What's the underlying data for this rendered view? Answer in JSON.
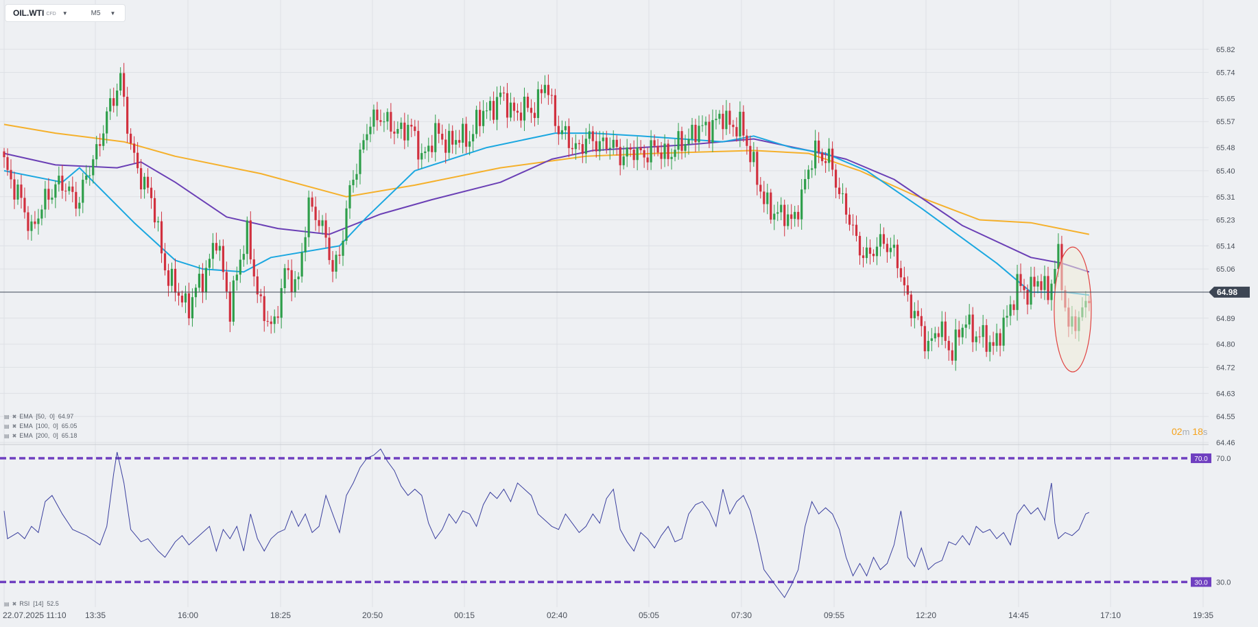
{
  "toolbar": {
    "symbol": "OIL.WTI",
    "symbol_type": "CFD",
    "timeframe": "M5"
  },
  "colors": {
    "bull": "#2e9e4a",
    "bear": "#d1303e",
    "ema50": "#1aa7e0",
    "ema100": "#6a3fb5",
    "ema200": "#f5b02a",
    "rsi_line": "#3a3f9e",
    "rsi_levels": "#6f3fc0",
    "price_tag": "#3d4654",
    "grid": "#dde0e5",
    "highlight_fill": "#f0ecd8",
    "highlight_stroke": "#e0413f"
  },
  "indicators": [
    {
      "label": "EMA  [50,  0]  64.97"
    },
    {
      "label": "EMA  [100,  0]  65.05"
    },
    {
      "label": "EMA  [200,  0]  65.18"
    }
  ],
  "rsi_legend": "RSI  [14]  52.5",
  "countdown": {
    "minutes": "02",
    "m": "m",
    "seconds": "18",
    "s": "s"
  },
  "chart_data": {
    "type": "candlestick",
    "symbol": "OIL.WTI",
    "timeframe": "M5",
    "y_ticks": [
      "65.82",
      "65.74",
      "65.65",
      "65.57",
      "65.48",
      "65.40",
      "65.31",
      "65.23",
      "65.14",
      "65.06",
      "64.89",
      "64.80",
      "64.72",
      "64.63",
      "64.55",
      "64.46"
    ],
    "y_range": [
      64.46,
      65.86
    ],
    "x_ticks": [
      "22.07.2025  11:10",
      "13:35",
      "16:00",
      "18:25",
      "20:50",
      "00:15",
      "02:40",
      "05:05",
      "07:30",
      "09:55",
      "12:20",
      "14:45",
      "17:10",
      "19:35"
    ],
    "current_price": "64.98",
    "anchors": [
      {
        "i": 0,
        "c": 65.43
      },
      {
        "i": 8,
        "c": 65.2
      },
      {
        "i": 15,
        "c": 65.36
      },
      {
        "i": 22,
        "c": 65.3
      },
      {
        "i": 30,
        "c": 65.58
      },
      {
        "i": 34,
        "c": 65.73
      },
      {
        "i": 37,
        "c": 65.47
      },
      {
        "i": 43,
        "c": 65.3
      },
      {
        "i": 48,
        "c": 65.02
      },
      {
        "i": 54,
        "c": 64.93
      },
      {
        "i": 58,
        "c": 65.03
      },
      {
        "i": 62,
        "c": 65.16
      },
      {
        "i": 66,
        "c": 64.93
      },
      {
        "i": 71,
        "c": 65.19
      },
      {
        "i": 75,
        "c": 64.91
      },
      {
        "i": 79,
        "c": 64.87
      },
      {
        "i": 82,
        "c": 65.04
      },
      {
        "i": 86,
        "c": 65.02
      },
      {
        "i": 89,
        "c": 65.28
      },
      {
        "i": 92,
        "c": 65.24
      },
      {
        "i": 96,
        "c": 65.06
      },
      {
        "i": 98,
        "c": 65.12
      },
      {
        "i": 102,
        "c": 65.38
      },
      {
        "i": 106,
        "c": 65.54
      },
      {
        "i": 110,
        "c": 65.6
      },
      {
        "i": 114,
        "c": 65.53
      },
      {
        "i": 118,
        "c": 65.56
      },
      {
        "i": 122,
        "c": 65.45
      },
      {
        "i": 126,
        "c": 65.52
      },
      {
        "i": 131,
        "c": 65.5
      },
      {
        "i": 136,
        "c": 65.52
      },
      {
        "i": 140,
        "c": 65.6
      },
      {
        "i": 145,
        "c": 65.65
      },
      {
        "i": 150,
        "c": 65.6
      },
      {
        "i": 155,
        "c": 65.62
      },
      {
        "i": 158,
        "c": 65.7
      },
      {
        "i": 162,
        "c": 65.55
      },
      {
        "i": 166,
        "c": 65.48
      },
      {
        "i": 170,
        "c": 65.5
      },
      {
        "i": 175,
        "c": 65.5
      },
      {
        "i": 180,
        "c": 65.46
      },
      {
        "i": 185,
        "c": 65.46
      },
      {
        "i": 190,
        "c": 65.47
      },
      {
        "i": 195,
        "c": 65.46
      },
      {
        "i": 200,
        "c": 65.52
      },
      {
        "i": 205,
        "c": 65.55
      },
      {
        "i": 210,
        "c": 65.58
      },
      {
        "i": 215,
        "c": 65.55
      },
      {
        "i": 219,
        "c": 65.43
      },
      {
        "i": 222,
        "c": 65.28
      },
      {
        "i": 226,
        "c": 65.26
      },
      {
        "i": 230,
        "c": 65.22
      },
      {
        "i": 234,
        "c": 65.35
      },
      {
        "i": 237,
        "c": 65.48
      },
      {
        "i": 241,
        "c": 65.43
      },
      {
        "i": 245,
        "c": 65.3
      },
      {
        "i": 249,
        "c": 65.15
      },
      {
        "i": 253,
        "c": 65.1
      },
      {
        "i": 257,
        "c": 65.17
      },
      {
        "i": 261,
        "c": 65.08
      },
      {
        "i": 264,
        "c": 64.96
      },
      {
        "i": 267,
        "c": 64.87
      },
      {
        "i": 270,
        "c": 64.8
      },
      {
        "i": 273,
        "c": 64.85
      },
      {
        "i": 277,
        "c": 64.78
      },
      {
        "i": 281,
        "c": 64.88
      },
      {
        "i": 285,
        "c": 64.82
      },
      {
        "i": 289,
        "c": 64.8
      },
      {
        "i": 293,
        "c": 64.88
      },
      {
        "i": 296,
        "c": 65.02
      },
      {
        "i": 299,
        "c": 64.96
      },
      {
        "i": 302,
        "c": 65.04
      },
      {
        "i": 305,
        "c": 64.96
      },
      {
        "i": 308,
        "c": 65.12
      },
      {
        "i": 311,
        "c": 64.84
      },
      {
        "i": 313,
        "c": 64.88
      },
      {
        "i": 315,
        "c": 64.92
      },
      {
        "i": 317,
        "c": 64.97
      }
    ],
    "ema_50": [
      [
        0,
        65.4
      ],
      [
        17,
        65.36
      ],
      [
        22,
        65.41
      ],
      [
        38,
        65.22
      ],
      [
        50,
        65.09
      ],
      [
        58,
        65.06
      ],
      [
        70,
        65.05
      ],
      [
        78,
        65.1
      ],
      [
        98,
        65.14
      ],
      [
        106,
        65.24
      ],
      [
        120,
        65.4
      ],
      [
        141,
        65.48
      ],
      [
        161,
        65.53
      ],
      [
        172,
        65.53
      ],
      [
        186,
        65.52
      ],
      [
        210,
        65.5
      ],
      [
        219,
        65.52
      ],
      [
        230,
        65.48
      ],
      [
        240,
        65.46
      ],
      [
        252,
        65.4
      ],
      [
        268,
        65.27
      ],
      [
        290,
        65.08
      ],
      [
        300,
        64.98
      ],
      [
        310,
        64.98
      ],
      [
        317,
        64.97
      ]
    ],
    "ema_100": [
      [
        0,
        65.46
      ],
      [
        15,
        65.42
      ],
      [
        33,
        65.41
      ],
      [
        40,
        65.43
      ],
      [
        50,
        65.36
      ],
      [
        65,
        65.24
      ],
      [
        80,
        65.2
      ],
      [
        95,
        65.18
      ],
      [
        110,
        65.25
      ],
      [
        125,
        65.3
      ],
      [
        145,
        65.36
      ],
      [
        160,
        65.44
      ],
      [
        172,
        65.47
      ],
      [
        186,
        65.48
      ],
      [
        200,
        65.49
      ],
      [
        219,
        65.51
      ],
      [
        235,
        65.47
      ],
      [
        246,
        65.44
      ],
      [
        260,
        65.37
      ],
      [
        280,
        65.21
      ],
      [
        300,
        65.1
      ],
      [
        309,
        65.08
      ],
      [
        317,
        65.05
      ]
    ],
    "ema_200": [
      [
        0,
        65.56
      ],
      [
        15,
        65.53
      ],
      [
        35,
        65.5
      ],
      [
        50,
        65.45
      ],
      [
        75,
        65.39
      ],
      [
        100,
        65.31
      ],
      [
        120,
        65.35
      ],
      [
        145,
        65.41
      ],
      [
        170,
        65.45
      ],
      [
        190,
        65.46
      ],
      [
        219,
        65.47
      ],
      [
        235,
        65.46
      ],
      [
        250,
        65.4
      ],
      [
        265,
        65.32
      ],
      [
        285,
        65.23
      ],
      [
        300,
        65.22
      ],
      [
        317,
        65.18
      ]
    ],
    "rsi": {
      "period": 14,
      "last": 52.5,
      "levels": [
        70.0,
        30.0
      ],
      "y_labels": [
        "70.0",
        "30.0"
      ],
      "range": [
        23,
        74
      ],
      "points": [
        [
          0,
          53
        ],
        [
          1,
          44
        ],
        [
          4,
          46
        ],
        [
          6,
          44
        ],
        [
          8,
          48
        ],
        [
          10,
          46
        ],
        [
          12,
          56
        ],
        [
          14,
          58
        ],
        [
          17,
          52
        ],
        [
          20,
          47
        ],
        [
          24,
          45
        ],
        [
          28,
          42
        ],
        [
          30,
          48
        ],
        [
          32,
          65
        ],
        [
          33,
          72
        ],
        [
          35,
          62
        ],
        [
          37,
          47
        ],
        [
          40,
          43
        ],
        [
          42,
          44
        ],
        [
          45,
          40
        ],
        [
          47,
          38
        ],
        [
          50,
          43
        ],
        [
          52,
          45
        ],
        [
          54,
          42
        ],
        [
          57,
          45
        ],
        [
          60,
          48
        ],
        [
          62,
          40
        ],
        [
          64,
          47
        ],
        [
          66,
          44
        ],
        [
          68,
          48
        ],
        [
          70,
          40
        ],
        [
          72,
          52
        ],
        [
          74,
          44
        ],
        [
          76,
          40
        ],
        [
          78,
          44
        ],
        [
          80,
          46
        ],
        [
          82,
          47
        ],
        [
          84,
          53
        ],
        [
          86,
          48
        ],
        [
          88,
          52
        ],
        [
          90,
          46
        ],
        [
          92,
          48
        ],
        [
          94,
          58
        ],
        [
          96,
          52
        ],
        [
          98,
          46
        ],
        [
          100,
          58
        ],
        [
          102,
          62
        ],
        [
          104,
          67
        ],
        [
          106,
          70
        ],
        [
          108,
          71
        ],
        [
          110,
          73
        ],
        [
          112,
          69
        ],
        [
          114,
          66
        ],
        [
          116,
          61
        ],
        [
          118,
          58
        ],
        [
          120,
          60
        ],
        [
          122,
          58
        ],
        [
          124,
          49
        ],
        [
          126,
          44
        ],
        [
          128,
          47
        ],
        [
          130,
          52
        ],
        [
          132,
          49
        ],
        [
          134,
          53
        ],
        [
          136,
          52
        ],
        [
          138,
          48
        ],
        [
          140,
          55
        ],
        [
          142,
          59
        ],
        [
          144,
          57
        ],
        [
          146,
          60
        ],
        [
          148,
          56
        ],
        [
          150,
          62
        ],
        [
          152,
          60
        ],
        [
          154,
          58
        ],
        [
          156,
          52
        ],
        [
          158,
          50
        ],
        [
          160,
          48
        ],
        [
          162,
          47
        ],
        [
          164,
          52
        ],
        [
          166,
          49
        ],
        [
          168,
          46
        ],
        [
          170,
          48
        ],
        [
          172,
          52
        ],
        [
          174,
          49
        ],
        [
          176,
          57
        ],
        [
          178,
          60
        ],
        [
          180,
          47
        ],
        [
          182,
          43
        ],
        [
          184,
          40
        ],
        [
          186,
          46
        ],
        [
          188,
          44
        ],
        [
          190,
          41
        ],
        [
          192,
          45
        ],
        [
          194,
          48
        ],
        [
          196,
          43
        ],
        [
          198,
          44
        ],
        [
          200,
          52
        ],
        [
          202,
          55
        ],
        [
          204,
          56
        ],
        [
          206,
          53
        ],
        [
          208,
          48
        ],
        [
          210,
          60
        ],
        [
          212,
          52
        ],
        [
          214,
          56
        ],
        [
          216,
          58
        ],
        [
          218,
          53
        ],
        [
          220,
          44
        ],
        [
          222,
          34
        ],
        [
          224,
          31
        ],
        [
          226,
          28
        ],
        [
          228,
          25
        ],
        [
          230,
          29
        ],
        [
          232,
          34
        ],
        [
          234,
          48
        ],
        [
          236,
          56
        ],
        [
          238,
          52
        ],
        [
          240,
          54
        ],
        [
          242,
          52
        ],
        [
          244,
          47
        ],
        [
          246,
          38
        ],
        [
          248,
          32
        ],
        [
          250,
          36
        ],
        [
          252,
          32
        ],
        [
          254,
          38
        ],
        [
          256,
          34
        ],
        [
          258,
          36
        ],
        [
          260,
          42
        ],
        [
          262,
          53
        ],
        [
          264,
          38
        ],
        [
          266,
          35
        ],
        [
          268,
          41
        ],
        [
          270,
          34
        ],
        [
          272,
          36
        ],
        [
          274,
          37
        ],
        [
          276,
          43
        ],
        [
          278,
          42
        ],
        [
          280,
          45
        ],
        [
          282,
          42
        ],
        [
          284,
          48
        ],
        [
          286,
          46
        ],
        [
          288,
          47
        ],
        [
          290,
          44
        ],
        [
          292,
          46
        ],
        [
          294,
          42
        ],
        [
          296,
          52
        ],
        [
          298,
          55
        ],
        [
          300,
          52
        ],
        [
          302,
          54
        ],
        [
          304,
          50
        ],
        [
          306,
          62
        ],
        [
          307,
          49
        ],
        [
          308,
          44
        ],
        [
          310,
          46
        ],
        [
          312,
          45
        ],
        [
          314,
          47
        ],
        [
          316,
          52
        ],
        [
          317,
          52.5
        ]
      ]
    }
  }
}
